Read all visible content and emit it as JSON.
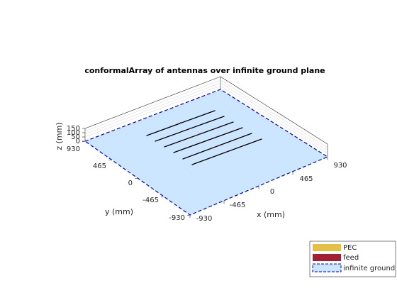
{
  "title": "conformalArray of antennas over infinite ground plane",
  "axes": {
    "x": {
      "label": "x (mm)",
      "ticks": [
        "-930",
        "-465",
        "0",
        "465",
        "930"
      ]
    },
    "y": {
      "label": "y (mm)",
      "ticks": [
        "-930",
        "-465",
        "0",
        "465",
        "930"
      ]
    },
    "z": {
      "label": "z (mm)",
      "ticks": [
        "0",
        "50",
        "100",
        "150"
      ]
    }
  },
  "legend": {
    "placement": "bottom-right",
    "entries": [
      {
        "name": "PEC",
        "color": "#e6bf45"
      },
      {
        "name": "feed",
        "color": "#a31f34"
      },
      {
        "name": "infinite ground",
        "color": "#cce6ff",
        "edge_color": "#0000cc"
      }
    ]
  },
  "colors": {
    "ground_fill": "#cce6ff",
    "ground_edge": "#0000cc",
    "antenna": "#000000",
    "box": "#262626"
  }
}
